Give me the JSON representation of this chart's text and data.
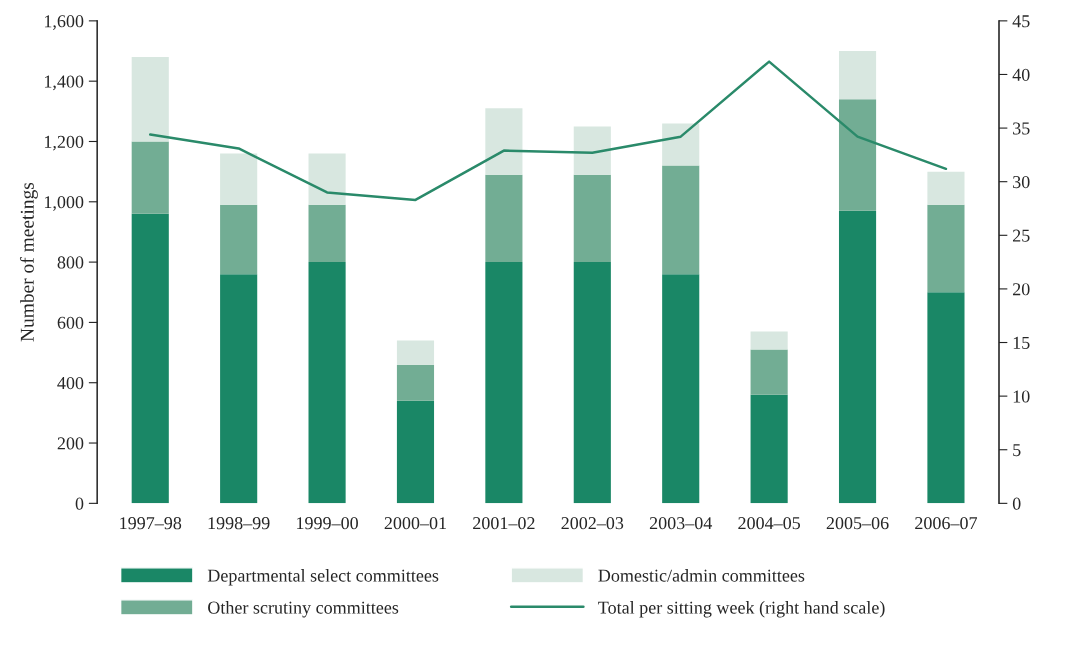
{
  "chart_data": {
    "type": "bar",
    "stacked": true,
    "ylabel": "Number of meetings",
    "categories": [
      "1997–98",
      "1998–99",
      "1999–00",
      "2000–01",
      "2001–02",
      "2002–03",
      "2003–04",
      "2004–05",
      "2005–06",
      "2006–07"
    ],
    "series": [
      {
        "name": "Departmental select committees",
        "color": "#1a8766",
        "values": [
          960,
          760,
          800,
          340,
          800,
          800,
          760,
          360,
          970,
          700
        ]
      },
      {
        "name": "Other scrutiny committees",
        "color": "#72ad94",
        "values": [
          240,
          230,
          190,
          120,
          290,
          290,
          360,
          150,
          370,
          290
        ]
      },
      {
        "name": "Domestic/admin committees",
        "color": "#d8e7e0",
        "values": [
          280,
          170,
          170,
          80,
          220,
          160,
          140,
          60,
          160,
          110
        ]
      },
      {
        "name": "Total per sitting week (right hand scale)",
        "type": "line",
        "axis": "y2",
        "color": "#2a8a6a",
        "values": [
          34.4,
          33.1,
          29.0,
          28.3,
          32.9,
          32.7,
          34.2,
          41.2,
          34.2,
          31.2
        ]
      }
    ],
    "ylim": [
      0,
      1600
    ],
    "yticks": [
      0,
      {
        "value": 200,
        "label": "200"
      },
      {
        "value": 400,
        "label": "400"
      },
      {
        "value": 600,
        "label": "600"
      },
      {
        "value": 800,
        "label": "800"
      },
      {
        "value": 1000,
        "label": "1,000"
      },
      {
        "value": 1200,
        "label": "1,200"
      },
      {
        "value": 1400,
        "label": "1,400"
      },
      {
        "value": 1600,
        "label": "1,600"
      }
    ],
    "y2lim": [
      0,
      45
    ],
    "y2ticks": [
      0,
      5,
      10,
      15,
      20,
      25,
      30,
      35,
      40,
      45
    ],
    "grid": false,
    "legend": "bottom"
  }
}
